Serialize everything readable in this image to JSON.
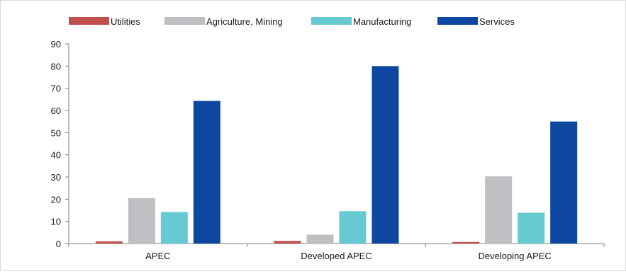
{
  "chart_data": {
    "type": "bar",
    "title": "",
    "xlabel": "",
    "ylabel": "",
    "categories": [
      "APEC",
      "Developed APEC",
      "Developing APEC"
    ],
    "ylim": [
      0,
      90
    ],
    "yticks": [
      0,
      10,
      20,
      30,
      40,
      50,
      60,
      70,
      80,
      90
    ],
    "grid": false,
    "legend_position": "top",
    "series": [
      {
        "name": "Utilities",
        "color": "#c0504d",
        "values": [
          1.0,
          1.2,
          0.7
        ]
      },
      {
        "name": "Agriculture, Mining",
        "color": "#bfbfc3",
        "values": [
          20.5,
          4.0,
          30.3
        ]
      },
      {
        "name": "Manufacturing",
        "color": "#66cad3",
        "values": [
          14.2,
          14.6,
          13.9
        ]
      },
      {
        "name": "Services",
        "color": "#0d47a1",
        "values": [
          64.3,
          80.0,
          55.0
        ]
      }
    ]
  }
}
